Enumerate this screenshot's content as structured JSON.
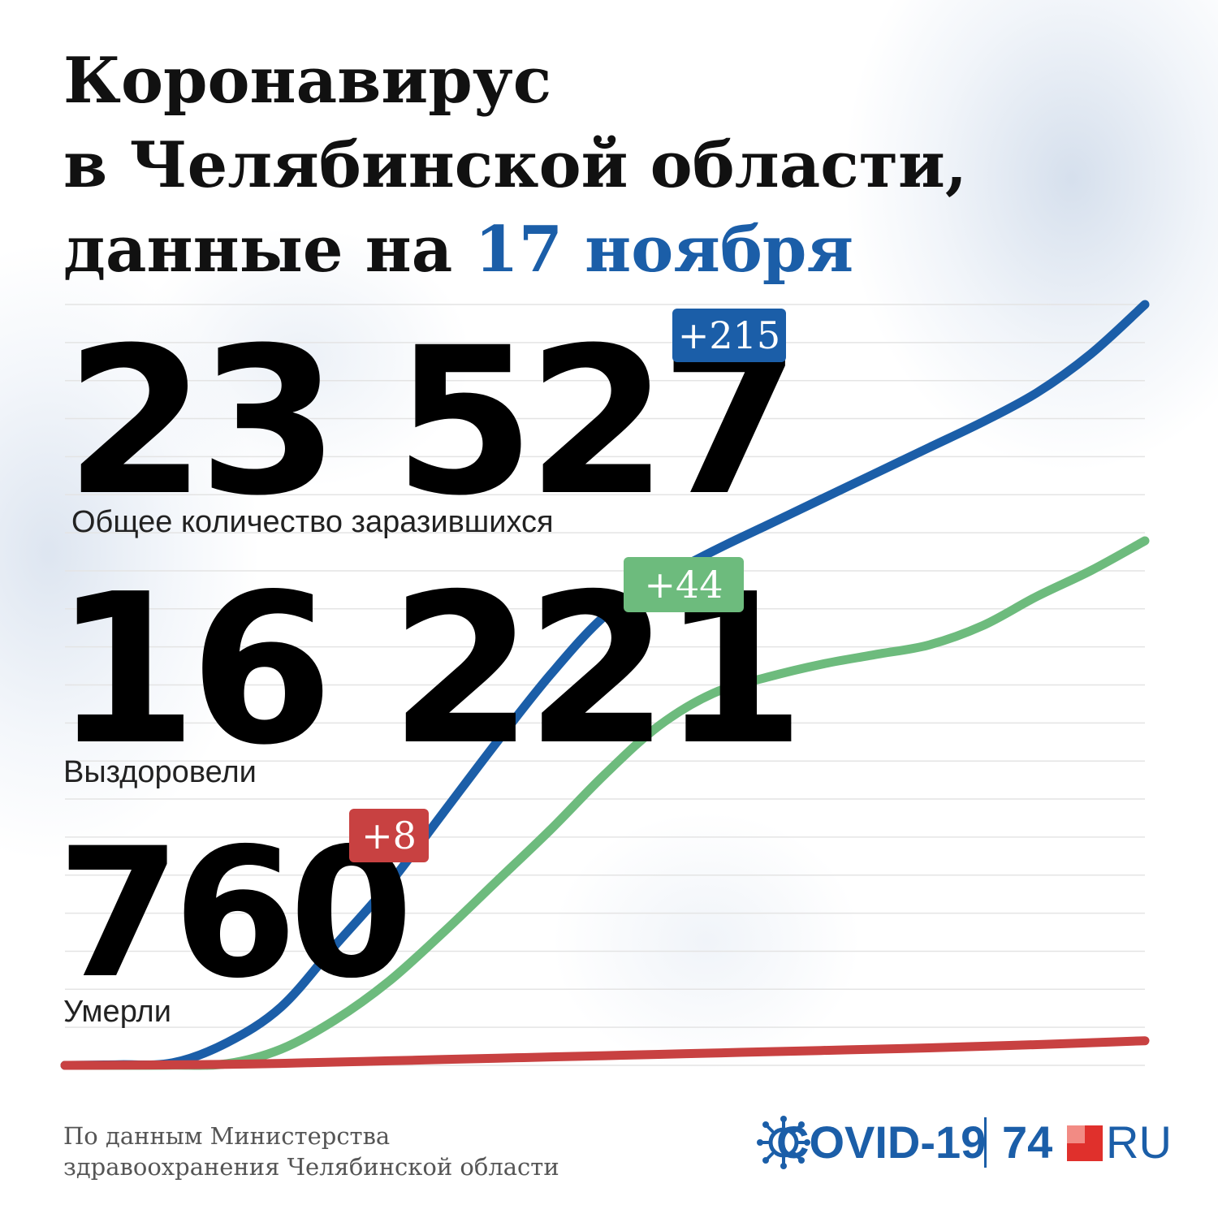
{
  "header": {
    "title_line1": "Коронавирус",
    "title_line2": "в Челябинской области,",
    "title_line3_prefix": "данные на ",
    "title_line3_highlight": "17 ноября"
  },
  "stats": {
    "cases": {
      "value": "23 527",
      "label": "Общее количество заразившихся",
      "delta": "+215"
    },
    "recovered": {
      "value": "16 221",
      "label": "Выздоровели",
      "delta": "+44"
    },
    "deaths": {
      "value": "760",
      "label": "Умерли",
      "delta": "+8"
    }
  },
  "footer": {
    "source_line1": "По данным Министерства",
    "source_line2": "здравоохранения Челябинской области"
  },
  "logo": {
    "covid": "COVID-19",
    "site_number": "74",
    "site_suffix": "RU"
  },
  "colors": {
    "cases": "#1b5ea8",
    "recovered": "#6dbb7d",
    "deaths": "#c84141",
    "title_highlight": "#1b5ea8",
    "grid": "#e4e4e4"
  },
  "chart_data": {
    "type": "line",
    "title": "",
    "xlabel": "",
    "ylabel": "",
    "grid": true,
    "ylim": [
      0,
      23527
    ],
    "x": [
      0,
      5,
      10,
      15,
      20,
      25,
      30,
      35,
      40,
      45,
      50,
      55,
      60,
      65,
      70,
      75,
      80,
      85,
      90,
      95,
      100
    ],
    "series": [
      {
        "name": "Общее количество заразившихся",
        "color": "#1b5ea8",
        "values": [
          0,
          20,
          80,
          700,
          1800,
          3700,
          5600,
          7800,
          10000,
          12100,
          13900,
          15000,
          15900,
          16700,
          17500,
          18300,
          19100,
          19900,
          20800,
          22000,
          23527
        ]
      },
      {
        "name": "Выздоровели",
        "color": "#6dbb7d",
        "values": [
          0,
          0,
          5,
          50,
          500,
          1400,
          2600,
          4100,
          5700,
          7300,
          9000,
          10500,
          11500,
          12000,
          12400,
          12700,
          13000,
          13600,
          14500,
          15300,
          16221
        ]
      },
      {
        "name": "Умерли",
        "color": "#c84141",
        "values": [
          0,
          5,
          15,
          30,
          60,
          100,
          140,
          180,
          220,
          260,
          300,
          340,
          380,
          420,
          460,
          500,
          540,
          590,
          640,
          700,
          760
        ]
      }
    ]
  }
}
